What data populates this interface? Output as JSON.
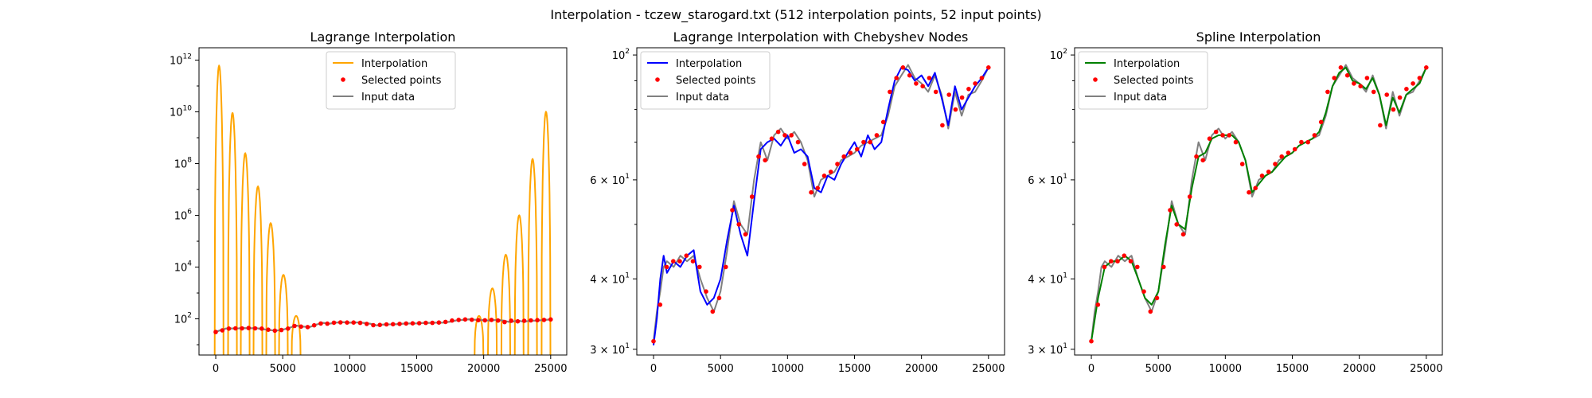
{
  "figure": {
    "suptitle": "Interpolation - tczew_starogard.txt (512 interpolation points, 52 input points)"
  },
  "colors": {
    "input": "#808080",
    "points": "#ff0000",
    "lagrange": "#ffa500",
    "chebyshev": "#0000ff",
    "spline": "#008000"
  },
  "chart_data": [
    {
      "type": "line",
      "title": "Lagrange Interpolation",
      "yscale": "log",
      "xlim": [
        -1250,
        26200
      ],
      "ylim": [
        4,
        3000000000000
      ],
      "xticks": [
        0,
        5000,
        10000,
        15000,
        20000,
        25000
      ],
      "xtick_labels": [
        "0",
        "5000",
        "10000",
        "15000",
        "20000",
        "25000"
      ],
      "yticks": [
        100,
        10000,
        1000000,
        100000000,
        10000000000,
        1000000000000
      ],
      "ytick_labels": [
        [
          "10",
          "2"
        ],
        [
          "10",
          "4"
        ],
        [
          "10",
          "6"
        ],
        [
          "10",
          "8"
        ],
        [
          "10",
          "10"
        ],
        [
          "10",
          "12"
        ]
      ],
      "legend": {
        "position": "upper-center",
        "entries": [
          {
            "label": "Interpolation",
            "kind": "line",
            "color_key": "lagrange"
          },
          {
            "label": "Selected points",
            "kind": "marker",
            "color_key": "points"
          },
          {
            "label": "Input data",
            "kind": "line",
            "color_key": "input"
          }
        ]
      },
      "series": [
        {
          "name": "Input data",
          "color_key": "input",
          "x": [
            0,
            250,
            500,
            750,
            1000,
            1500,
            2000,
            2500,
            3000,
            3500,
            4000,
            4500,
            5000,
            5500,
            6000,
            6500,
            7000,
            7500,
            8000,
            8500,
            9000,
            9500,
            10000,
            10500,
            11000,
            11500,
            12000,
            12500,
            13000,
            13500,
            14000,
            14500,
            15000,
            15500,
            16000,
            16500,
            17000,
            17500,
            18000,
            18500,
            19000,
            19500,
            20000,
            20500,
            21000,
            21500,
            22000,
            22500,
            23000,
            23500,
            24000,
            24500,
            25000
          ],
          "y": [
            31,
            35,
            38,
            42,
            43,
            42,
            44,
            43,
            44,
            40,
            37,
            35,
            38,
            45,
            55,
            50,
            48,
            60,
            70,
            65,
            72,
            74,
            71,
            73,
            70,
            65,
            56,
            60,
            61,
            62,
            65,
            66,
            67,
            69,
            70,
            71,
            72,
            78,
            88,
            92,
            96,
            91,
            89,
            86,
            92,
            85,
            74,
            86,
            78,
            85,
            86,
            90,
            95
          ]
        },
        {
          "name": "Interpolation",
          "color_key": "lagrange",
          "spikes": [
            {
              "x": 250,
              "peak": 600000000000
            },
            {
              "x": 1250,
              "peak": 9000000000
            },
            {
              "x": 2200,
              "peak": 250000000
            },
            {
              "x": 3150,
              "peak": 13000000
            },
            {
              "x": 4100,
              "peak": 500000
            },
            {
              "x": 5050,
              "peak": 5000
            },
            {
              "x": 6000,
              "peak": 130
            },
            {
              "x": 19650,
              "peak": 130
            },
            {
              "x": 20650,
              "peak": 1500
            },
            {
              "x": 21650,
              "peak": 30000
            },
            {
              "x": 22650,
              "peak": 1000000
            },
            {
              "x": 23650,
              "peak": 150000000
            },
            {
              "x": 24650,
              "peak": 10000000000
            }
          ]
        }
      ]
    },
    {
      "type": "line",
      "title": "Lagrange Interpolation with Chebyshev Nodes",
      "yscale": "log",
      "xlim": [
        -1250,
        26200
      ],
      "ylim": [
        29.3,
        103
      ],
      "xticks": [
        0,
        5000,
        10000,
        15000,
        20000,
        25000
      ],
      "xtick_labels": [
        "0",
        "5000",
        "10000",
        "15000",
        "20000",
        "25000"
      ],
      "yticks": [
        30,
        40,
        60,
        100
      ],
      "ytick_labels": [
        [
          "3 × 10",
          "1"
        ],
        [
          "4 × 10",
          "1"
        ],
        [
          "6 × 10",
          "1"
        ],
        [
          "10",
          "2"
        ]
      ],
      "legend": {
        "position": "upper-left",
        "entries": [
          {
            "label": "Interpolation",
            "kind": "line",
            "color_key": "chebyshev"
          },
          {
            "label": "Selected points",
            "kind": "marker",
            "color_key": "points"
          },
          {
            "label": "Input data",
            "kind": "line",
            "color_key": "input"
          }
        ]
      },
      "series": [
        {
          "name": "Input data",
          "color_key": "input",
          "x": [
            0,
            250,
            500,
            750,
            1000,
            1500,
            2000,
            2500,
            3000,
            3500,
            4000,
            4500,
            5000,
            5500,
            6000,
            6500,
            7000,
            7500,
            8000,
            8500,
            9000,
            9500,
            10000,
            10500,
            11000,
            11500,
            12000,
            12500,
            13000,
            13500,
            14000,
            14500,
            15000,
            15500,
            16000,
            16500,
            17000,
            17500,
            18000,
            18500,
            19000,
            19500,
            20000,
            20500,
            21000,
            21500,
            22000,
            22500,
            23000,
            23500,
            24000,
            24500,
            25000
          ],
          "y": [
            31,
            35,
            38,
            42,
            43,
            42,
            44,
            43,
            44,
            40,
            37,
            35,
            38,
            45,
            55,
            50,
            48,
            60,
            70,
            65,
            72,
            74,
            71,
            73,
            70,
            65,
            56,
            60,
            61,
            62,
            65,
            66,
            67,
            69,
            70,
            71,
            72,
            78,
            88,
            92,
            96,
            91,
            89,
            86,
            92,
            85,
            74,
            86,
            78,
            85,
            86,
            90,
            95
          ]
        },
        {
          "name": "Interpolation",
          "color_key": "chebyshev",
          "x": [
            0,
            250,
            500,
            750,
            1000,
            1500,
            2000,
            2500,
            3000,
            3500,
            4000,
            4500,
            5000,
            5500,
            6000,
            6500,
            7000,
            7500,
            8000,
            8500,
            9000,
            9500,
            10000,
            10500,
            11000,
            11500,
            12000,
            12500,
            13000,
            13500,
            14000,
            14500,
            15000,
            15500,
            16000,
            16500,
            17000,
            17500,
            18000,
            18500,
            19000,
            19500,
            20000,
            20500,
            21000,
            21500,
            22000,
            22500,
            23000,
            23500,
            24000,
            24500,
            25000
          ],
          "y": [
            30.5,
            34,
            40,
            44,
            41,
            43,
            42,
            44,
            45,
            38,
            36,
            37,
            40,
            47,
            54,
            48,
            44,
            55,
            68,
            70,
            71,
            69,
            72,
            67,
            68,
            66,
            58,
            57,
            61,
            60,
            64,
            67,
            70,
            66,
            72,
            68,
            70,
            80,
            90,
            95,
            94,
            90,
            92,
            88,
            93,
            84,
            75,
            88,
            80,
            84,
            88,
            91,
            95
          ]
        }
      ]
    },
    {
      "type": "line",
      "title": "Spline Interpolation",
      "yscale": "log",
      "xlim": [
        -1250,
        26200
      ],
      "ylim": [
        29.3,
        103
      ],
      "xticks": [
        0,
        5000,
        10000,
        15000,
        20000,
        25000
      ],
      "xtick_labels": [
        "0",
        "5000",
        "10000",
        "15000",
        "20000",
        "25000"
      ],
      "yticks": [
        30,
        40,
        60,
        100
      ],
      "ytick_labels": [
        [
          "3 × 10",
          "1"
        ],
        [
          "4 × 10",
          "1"
        ],
        [
          "6 × 10",
          "1"
        ],
        [
          "10",
          "2"
        ]
      ],
      "legend": {
        "position": "upper-left",
        "entries": [
          {
            "label": "Interpolation",
            "kind": "line",
            "color_key": "spline"
          },
          {
            "label": "Selected points",
            "kind": "marker",
            "color_key": "points"
          },
          {
            "label": "Input data",
            "kind": "line",
            "color_key": "input"
          }
        ]
      },
      "series": [
        {
          "name": "Input data",
          "color_key": "input",
          "x": [
            0,
            250,
            500,
            750,
            1000,
            1500,
            2000,
            2500,
            3000,
            3500,
            4000,
            4500,
            5000,
            5500,
            6000,
            6500,
            7000,
            7500,
            8000,
            8500,
            9000,
            9500,
            10000,
            10500,
            11000,
            11500,
            12000,
            12500,
            13000,
            13500,
            14000,
            14500,
            15000,
            15500,
            16000,
            16500,
            17000,
            17500,
            18000,
            18500,
            19000,
            19500,
            20000,
            20500,
            21000,
            21500,
            22000,
            22500,
            23000,
            23500,
            24000,
            24500,
            25000
          ],
          "y": [
            31,
            35,
            38,
            42,
            43,
            42,
            44,
            43,
            44,
            40,
            37,
            35,
            38,
            45,
            55,
            50,
            48,
            60,
            70,
            65,
            72,
            74,
            71,
            73,
            70,
            65,
            56,
            60,
            61,
            62,
            65,
            66,
            67,
            69,
            70,
            71,
            72,
            78,
            88,
            92,
            96,
            91,
            89,
            86,
            92,
            85,
            74,
            86,
            78,
            85,
            86,
            90,
            95
          ]
        },
        {
          "name": "Interpolation",
          "color_key": "spline",
          "x": [
            0,
            500,
            1000,
            1500,
            2000,
            2500,
            3000,
            3500,
            4000,
            4500,
            5000,
            5500,
            6000,
            6500,
            7000,
            7500,
            8000,
            8500,
            9000,
            9500,
            10000,
            10500,
            11000,
            11500,
            12000,
            12500,
            13000,
            13500,
            14000,
            14500,
            15000,
            15500,
            16000,
            16500,
            17000,
            17500,
            18000,
            18500,
            19000,
            19500,
            20000,
            20500,
            21000,
            21500,
            22000,
            22500,
            23000,
            23500,
            24000,
            24500,
            25000
          ],
          "y": [
            31,
            37,
            42,
            43,
            43,
            44,
            43,
            40,
            37,
            36,
            38,
            46,
            54,
            50,
            49,
            58,
            66,
            67,
            71,
            72,
            72,
            72,
            70,
            65,
            57,
            59,
            61,
            62,
            64,
            66,
            67,
            69,
            70,
            71,
            73,
            79,
            88,
            93,
            95,
            90,
            89,
            87,
            91,
            85,
            75,
            84,
            79,
            85,
            87,
            89,
            95
          ]
        }
      ]
    }
  ],
  "selected_points": {
    "x": [
      0,
      490,
      980,
      1470,
      1960,
      2450,
      2940,
      3430,
      3920,
      4410,
      4900,
      5390,
      5880,
      6370,
      6860,
      7350,
      7840,
      8330,
      8820,
      9310,
      9800,
      10290,
      10780,
      11270,
      11760,
      12250,
      12740,
      13230,
      13720,
      14210,
      14700,
      15190,
      15680,
      16170,
      16660,
      17150,
      17640,
      18130,
      18620,
      19110,
      19600,
      20090,
      20580,
      21070,
      21560,
      22050,
      22540,
      23030,
      23520,
      24010,
      24500,
      25000
    ],
    "y": [
      31,
      36,
      42,
      43,
      43,
      44,
      43,
      42,
      38,
      35,
      37,
      42,
      53,
      50,
      48,
      56,
      66,
      65,
      71,
      73,
      72,
      72,
      70,
      64,
      57,
      58,
      61,
      62,
      64,
      66,
      67,
      68,
      70,
      70,
      72,
      76,
      86,
      91,
      95,
      92,
      89,
      88,
      91,
      86,
      75,
      85,
      80,
      84,
      87,
      89,
      91,
      95
    ]
  }
}
